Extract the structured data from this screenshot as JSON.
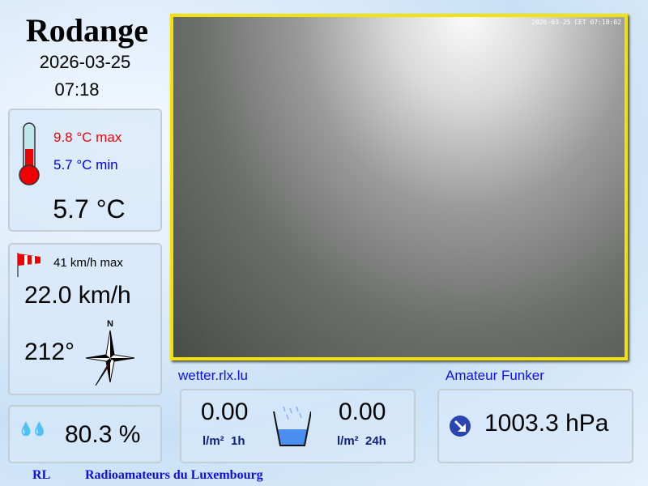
{
  "station": {
    "name": "Rodange",
    "date": "2026-03-25",
    "time": "07:18"
  },
  "webcam": {
    "timestamp": "2026-03-25 CET 07:18:02"
  },
  "temperature": {
    "max": "9.8 °C max",
    "min": "5.7 °C min",
    "current": "5.7 °C",
    "max_color": "#ff0000",
    "min_color": "#0000ff"
  },
  "wind": {
    "max": "41 km/h max",
    "speed": "22.0 km/h",
    "direction": "212°",
    "compass_north": "N"
  },
  "humidity": {
    "value": "80.3 %"
  },
  "rain": {
    "hour_value": "0.00",
    "hour_label": "l/m²  1h",
    "day_value": "0.00",
    "day_label": "l/m²  24h"
  },
  "pressure": {
    "value": "1003.3 hPa",
    "trend": "falling"
  },
  "links": {
    "site": "wetter.rlx.lu",
    "amateur": "Amateur Funker"
  },
  "footer": {
    "short": "RL",
    "long": "Radioamateurs du Luxembourg"
  }
}
